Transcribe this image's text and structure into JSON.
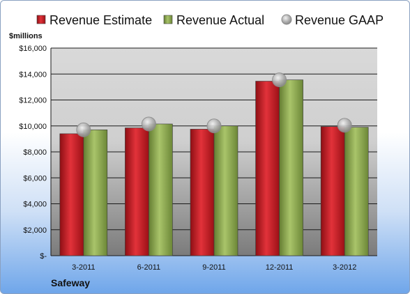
{
  "company": "Safeway",
  "chart_data": {
    "type": "bar",
    "ylabel": "$millions",
    "categories": [
      "3-2011",
      "6-2011",
      "9-2011",
      "12-2011",
      "3-2012"
    ],
    "series": [
      {
        "name": "Revenue Estimate",
        "kind": "bar",
        "color": "#c0151d",
        "values": [
          9400,
          9850,
          9750,
          13450,
          9950
        ]
      },
      {
        "name": "Revenue Actual",
        "kind": "bar",
        "color": "#8aa84b",
        "values": [
          9700,
          10150,
          10000,
          13550,
          9900
        ]
      },
      {
        "name": "Revenue GAAP",
        "kind": "marker",
        "color": "#a8a8a8",
        "values": [
          9700,
          10150,
          10000,
          13550,
          10050
        ]
      }
    ],
    "ylim": [
      0,
      16000
    ],
    "yticks": [
      0,
      2000,
      4000,
      6000,
      8000,
      10000,
      12000,
      14000,
      16000
    ],
    "ytick_labels": [
      "$-",
      "$2,000",
      "$4,000",
      "$6,000",
      "$8,000",
      "$10,000",
      "$12,000",
      "$14,000",
      "$16,000"
    ],
    "grid": true,
    "legend_position": "top"
  }
}
